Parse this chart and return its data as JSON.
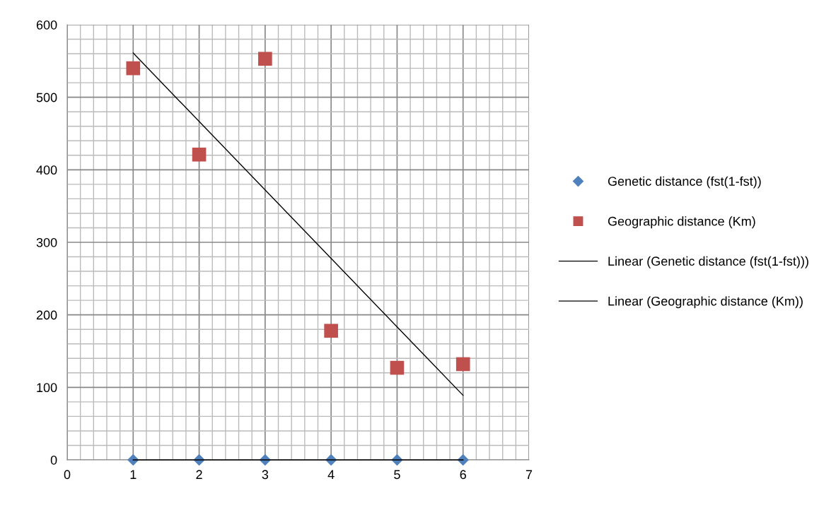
{
  "chart_data": {
    "type": "scatter",
    "x": [
      1,
      2,
      3,
      4,
      5,
      6
    ],
    "series": [
      {
        "name": "Genetic distance (fst(1-fst))",
        "color": "#4f81bd",
        "marker": "diamond",
        "values": [
          0,
          0,
          0,
          0,
          0,
          0
        ]
      },
      {
        "name": "Geographic distance (Km)",
        "color": "#c0504d",
        "marker": "square",
        "values": [
          540,
          421,
          553,
          178,
          127,
          132
        ]
      },
      {
        "name": "Linear (Genetic distance (fst(1-fst)))",
        "type": "line",
        "color": "#000000",
        "values": [
          0,
          0,
          0,
          0,
          0,
          0
        ]
      },
      {
        "name": "Linear (Geographic distance (Km))",
        "type": "line",
        "color": "#000000",
        "x": [
          1,
          6
        ],
        "values": [
          561,
          89
        ]
      }
    ],
    "xlim": [
      0,
      7
    ],
    "xticks": [
      0,
      1,
      2,
      3,
      4,
      5,
      6,
      7
    ],
    "ylim": [
      0,
      600
    ],
    "yticks": [
      0,
      100,
      200,
      300,
      400,
      500,
      600
    ],
    "grid": true,
    "legend": "right"
  }
}
